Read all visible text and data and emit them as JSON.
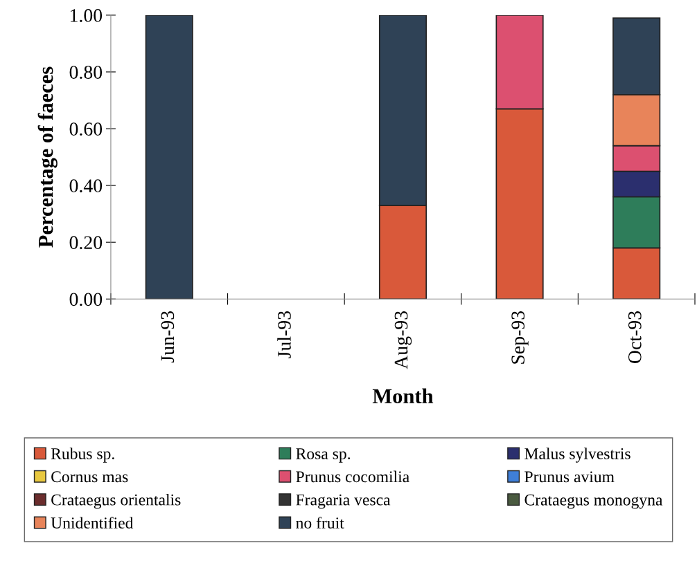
{
  "chart_data": {
    "type": "bar",
    "stacked": true,
    "xlabel": "Month",
    "ylabel": "Percentage of faeces",
    "categories": [
      "Jun-93",
      "Jul-93",
      "Aug-93",
      "Sep-93",
      "Oct-93"
    ],
    "series": [
      {
        "name": "Rubus sp.",
        "color": "#d9593a",
        "values": [
          0,
          0,
          0.33,
          0.67,
          0.18
        ]
      },
      {
        "name": "Rosa sp.",
        "color": "#2e7d5a",
        "values": [
          0,
          0,
          0,
          0,
          0.18
        ]
      },
      {
        "name": "Malus sylvestris",
        "color": "#2b2f6e",
        "values": [
          0,
          0,
          0,
          0,
          0.09
        ]
      },
      {
        "name": "Cornus mas",
        "color": "#e8c840",
        "values": [
          0,
          0,
          0,
          0,
          0
        ]
      },
      {
        "name": "Prunus cocomilia",
        "color": "#dc5070",
        "values": [
          0,
          0,
          0,
          0.33,
          0.09
        ]
      },
      {
        "name": "Prunus avium",
        "color": "#3f7fd8",
        "values": [
          0,
          0,
          0,
          0,
          0
        ]
      },
      {
        "name": "Crataegus orientalis",
        "color": "#6b2d2d",
        "values": [
          0,
          0,
          0,
          0,
          0
        ]
      },
      {
        "name": "Fragaria vesca",
        "color": "#333333",
        "values": [
          0,
          0,
          0,
          0,
          0
        ]
      },
      {
        "name": "Crataegus monogyna",
        "color": "#4a5a40",
        "values": [
          0,
          0,
          0,
          0,
          0
        ]
      },
      {
        "name": "Unidentified",
        "color": "#e8845a",
        "values": [
          0,
          0,
          0,
          0,
          0.18
        ]
      },
      {
        "name": "no fruit",
        "color": "#2f4256",
        "values": [
          1,
          0,
          0.67,
          0,
          0.27
        ]
      }
    ],
    "ylim": [
      0,
      1
    ],
    "yticks": [
      {
        "value": 0,
        "label": "0.00"
      },
      {
        "value": 0.2,
        "label": "0.20"
      },
      {
        "value": 0.4,
        "label": "0.40"
      },
      {
        "value": 0.6,
        "label": "0.60"
      },
      {
        "value": 0.8,
        "label": "0.80"
      },
      {
        "value": 1,
        "label": "1.00"
      }
    ],
    "grid": false,
    "legend": "bottom"
  }
}
